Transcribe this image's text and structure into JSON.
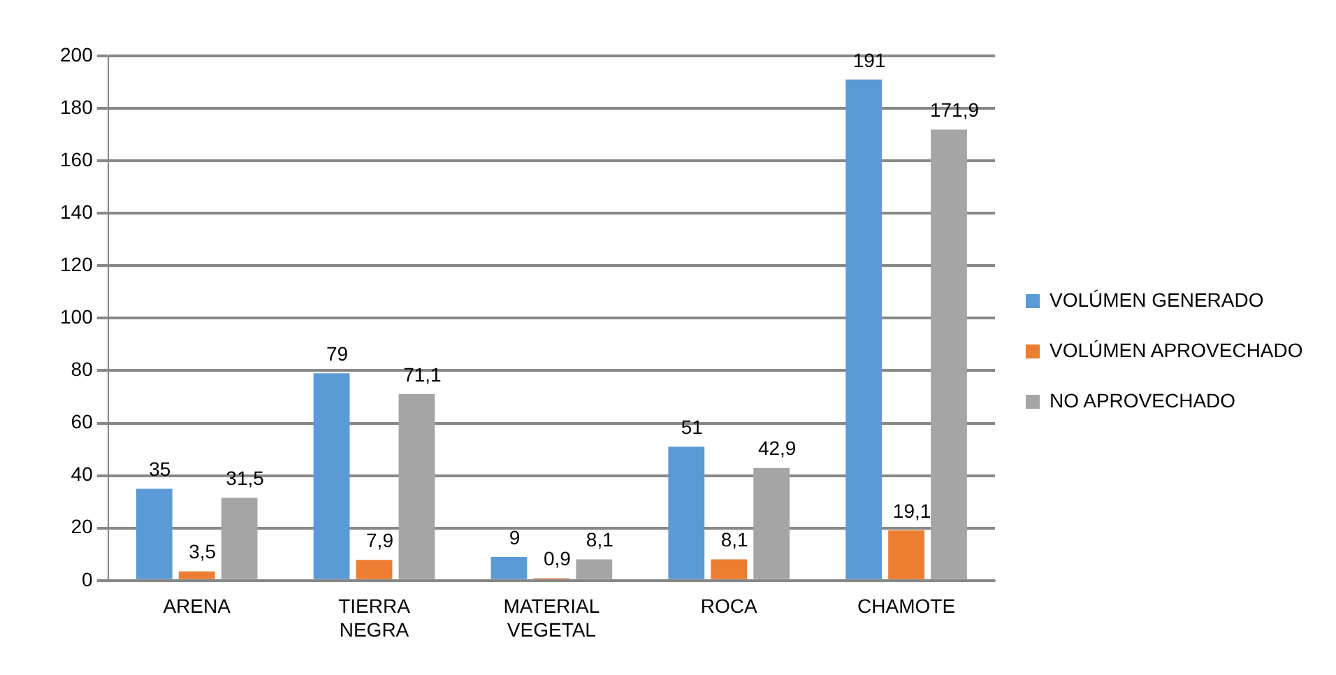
{
  "chart_data": {
    "type": "bar",
    "categories": [
      "ARENA",
      "TIERRA NEGRA",
      "MATERIAL VEGETAL",
      "ROCA",
      "CHAMOTE"
    ],
    "series": [
      {
        "name": "VOLÚMEN GENERADO",
        "color": "#5b9bd5",
        "values": [
          35,
          79,
          9,
          51,
          191
        ],
        "value_labels": [
          "35",
          "79",
          "9",
          "51",
          "191"
        ]
      },
      {
        "name": "VOLÚMEN APROVECHADO",
        "color": "#ed7d31",
        "values": [
          3.5,
          7.9,
          0.9,
          8.1,
          19.1
        ],
        "value_labels": [
          "3,5",
          "7,9",
          "0,9",
          "8,1",
          "19,1"
        ]
      },
      {
        "name": "NO APROVECHADO",
        "color": "#a5a5a5",
        "values": [
          31.5,
          71.1,
          8.1,
          42.9,
          171.9
        ],
        "value_labels": [
          "31,5",
          "71,1",
          "8,1",
          "42,9",
          "171,9"
        ]
      }
    ],
    "ylim": [
      0,
      200
    ],
    "yticks": [
      0,
      20,
      40,
      60,
      80,
      100,
      120,
      140,
      160,
      180,
      200
    ],
    "grid": "y",
    "legend": "right"
  }
}
